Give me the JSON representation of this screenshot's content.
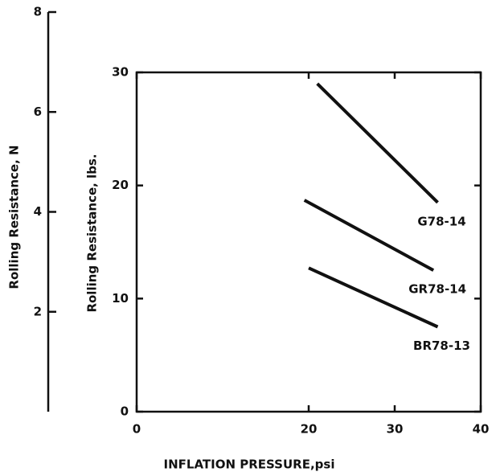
{
  "chart_data": {
    "type": "line",
    "xlabel": "INFLATION PRESSURE,psi",
    "ylabel": "Rolling Resistance, lbs.",
    "y2label": "Rolling Resistance, N",
    "xlim": [
      0,
      40
    ],
    "xticks": [
      0,
      20,
      30,
      40
    ],
    "ylim": [
      0,
      30
    ],
    "yticks": [
      0,
      10,
      20,
      30
    ],
    "y2lim": [
      0,
      8
    ],
    "y2ticks": [
      2,
      4,
      6,
      8
    ],
    "series": [
      {
        "name": "G78-14",
        "color": "#111111",
        "x": [
          21,
          35
        ],
        "values": [
          29,
          18.5
        ]
      },
      {
        "name": "GR78-14",
        "color": "#111111",
        "x": [
          19.5,
          34.5
        ],
        "values": [
          18.7,
          12.5
        ]
      },
      {
        "name": "BR78-13",
        "color": "#111111",
        "x": [
          20,
          35
        ],
        "values": [
          12.7,
          7.5
        ]
      }
    ]
  }
}
